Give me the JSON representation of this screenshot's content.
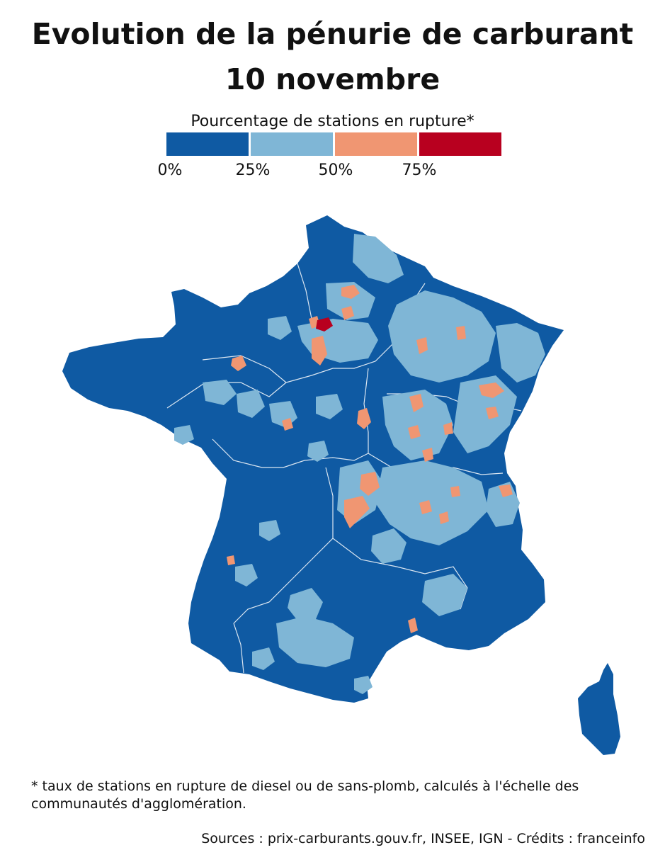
{
  "title": {
    "line1": "Evolution de la pénurie de carburant",
    "line2": "10 novembre"
  },
  "legend": {
    "title": "Pourcentage de stations en rupture*",
    "bins": [
      {
        "color": "#0f5aa3",
        "from": 0,
        "to": 25
      },
      {
        "color": "#7fb6d6",
        "from": 25,
        "to": 50
      },
      {
        "color": "#f09672",
        "from": 50,
        "to": 75
      },
      {
        "color": "#b8001f",
        "from": 75,
        "to": 100
      }
    ],
    "ticks": [
      "0%",
      "25%",
      "50%",
      "75%"
    ]
  },
  "map": {
    "region": "France métropolitaine",
    "colors": {
      "land": "#0f5aa3",
      "low": "#7fb6d6",
      "mid": "#f09672",
      "high": "#b8001f",
      "border": "#ffffff"
    }
  },
  "footnote": "* taux de stations en rupture de diesel ou de sans-plomb, calculés à l'échelle des communautés d'agglomération.",
  "sources": "Sources : prix-carburants.gouv.fr, INSEE, IGN - Crédits : franceinfo"
}
